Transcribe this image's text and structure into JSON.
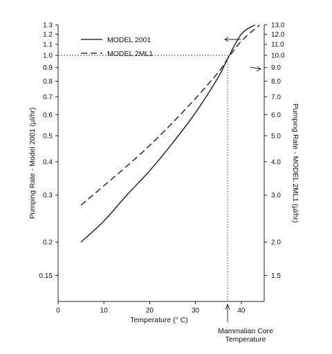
{
  "chart_data": {
    "type": "line",
    "x_axis": {
      "label": "Temperature (° C)",
      "range": [
        0,
        45
      ],
      "ticks": [
        0,
        10,
        20,
        30,
        40
      ]
    },
    "y_left": {
      "label": "Pumping Rate - Model 2001 (µl/hr)",
      "scale": "log",
      "range": [
        0.12,
        1.3
      ],
      "tick_values": [
        0.15,
        0.2,
        0.3,
        0.4,
        0.5,
        0.6,
        0.7,
        0.8,
        0.9,
        1.0,
        1.1,
        1.2,
        1.3
      ],
      "tick_labels": [
        "0.15",
        "0.2",
        "0.3",
        "0.4",
        "0.5",
        "0.6",
        "0.7",
        "0.8",
        "0.9",
        "1.0",
        "1.1",
        "1.2",
        "1.3"
      ]
    },
    "y_right": {
      "label": "Pumping Rate - MODEL 2ML1 (µl/hr)",
      "scale": "log",
      "range": [
        1.2,
        13.0
      ],
      "tick_values": [
        1.5,
        2.0,
        3.0,
        4.0,
        5.0,
        6.0,
        7.0,
        8.0,
        9.0,
        10.0,
        11.0,
        12.0,
        13.0
      ],
      "tick_labels": [
        "1.5",
        "2.0",
        "3.0",
        "4.0",
        "5.0",
        "6.0",
        "7.0",
        "8.0",
        "9.0",
        "10.0",
        "11.0",
        "12.0",
        "13.0"
      ]
    },
    "series": [
      {
        "name": "MODEL 2001",
        "axis": "left",
        "style": "solid",
        "x": [
          5,
          10,
          15,
          20,
          25,
          30,
          35,
          37,
          40,
          43
        ],
        "y": [
          0.2,
          0.24,
          0.3,
          0.37,
          0.47,
          0.61,
          0.83,
          0.97,
          1.2,
          1.3
        ]
      },
      {
        "name": "MODEL 2ML1",
        "axis": "right",
        "style": "dashed",
        "x": [
          5,
          10,
          15,
          20,
          25,
          30,
          35,
          37,
          40,
          44
        ],
        "y": [
          2.75,
          3.25,
          3.85,
          4.6,
          5.6,
          6.9,
          8.65,
          9.7,
          11.3,
          13.0
        ]
      }
    ],
    "reference": {
      "x": 37,
      "y_left": 1.0
    },
    "annotation": {
      "lines": [
        "Mammalian Core",
        "Temperature"
      ]
    },
    "legend_position": "top-left",
    "grid": false
  }
}
